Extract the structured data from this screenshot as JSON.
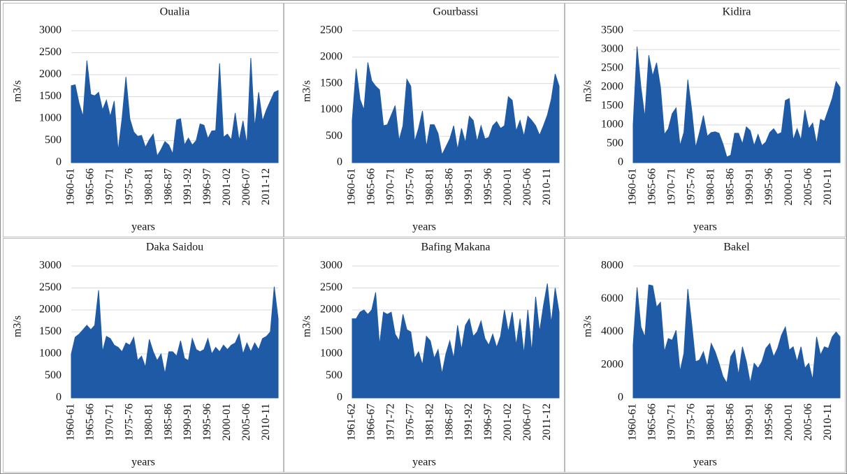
{
  "chart_data": [
    {
      "type": "area",
      "title": "Oualia",
      "y_label": "m3/s",
      "x_label": "years",
      "color": "#1f5aa6",
      "categories": [
        "1960-61",
        null,
        null,
        null,
        null,
        "1965-66",
        null,
        null,
        null,
        null,
        "1970-71",
        null,
        null,
        null,
        null,
        "1975-76",
        null,
        null,
        null,
        null,
        "1980-81",
        null,
        null,
        null,
        null,
        "1986-87",
        null,
        null,
        null,
        null,
        "1991-92",
        null,
        null,
        null,
        null,
        "1996-97",
        null,
        null,
        null,
        null,
        "2001-02",
        null,
        null,
        null,
        null,
        "2006-07",
        null,
        null,
        null,
        null,
        "2011-12",
        null,
        null,
        null
      ],
      "values": [
        1750,
        1770,
        1350,
        1050,
        2320,
        1550,
        1520,
        1600,
        1200,
        1420,
        1050,
        1400,
        270,
        1000,
        1950,
        1000,
        700,
        600,
        620,
        350,
        520,
        650,
        150,
        300,
        480,
        400,
        200,
        970,
        1000,
        400,
        560,
        400,
        500,
        880,
        850,
        550,
        720,
        730,
        2260,
        580,
        650,
        520,
        1130,
        500,
        950,
        420,
        2380,
        800,
        1600,
        950,
        1200,
        1400,
        1600,
        1640
      ],
      "ylim": [
        0,
        3000
      ],
      "yticks": [
        0,
        500,
        1000,
        1500,
        2000,
        2500,
        3000
      ]
    },
    {
      "type": "area",
      "title": "Gourbassi",
      "y_label": "m3/s",
      "x_label": "years",
      "color": "#1f5aa6",
      "categories": [
        "1960-61",
        null,
        null,
        null,
        null,
        "1965-66",
        null,
        null,
        null,
        null,
        "1970-71",
        null,
        null,
        null,
        null,
        "1975-76",
        null,
        null,
        null,
        null,
        "1980-81",
        null,
        null,
        null,
        null,
        "1985-86",
        null,
        null,
        null,
        null,
        "1990-91",
        null,
        null,
        null,
        null,
        "1995-96",
        null,
        null,
        null,
        null,
        "2000-01",
        null,
        null,
        null,
        null,
        "2005-06",
        null,
        null,
        null,
        null,
        "2010-11",
        null,
        null,
        null
      ],
      "values": [
        800,
        1780,
        1200,
        1000,
        1900,
        1550,
        1450,
        1380,
        700,
        720,
        900,
        1080,
        420,
        700,
        1580,
        1450,
        400,
        650,
        980,
        300,
        720,
        720,
        550,
        150,
        300,
        450,
        700,
        250,
        650,
        380,
        880,
        800,
        400,
        700,
        450,
        480,
        700,
        780,
        650,
        700,
        1250,
        1180,
        600,
        800,
        500,
        880,
        800,
        700,
        520,
        700,
        900,
        1200,
        1680,
        1450
      ],
      "ylim": [
        0,
        2500
      ],
      "yticks": [
        0,
        500,
        1000,
        1500,
        2000,
        2500
      ]
    },
    {
      "type": "area",
      "title": "Kidira",
      "y_label": "m3/s",
      "x_label": "years",
      "color": "#1f5aa6",
      "categories": [
        "1960-61",
        null,
        null,
        null,
        null,
        "1965-66",
        null,
        null,
        null,
        null,
        "1970-71",
        null,
        null,
        null,
        null,
        "1975-76",
        null,
        null,
        null,
        null,
        "1980-81",
        null,
        null,
        null,
        null,
        "1985-86",
        null,
        null,
        null,
        null,
        "1990-91",
        null,
        null,
        null,
        null,
        "1995-96",
        null,
        null,
        null,
        null,
        "2000-01",
        null,
        null,
        null,
        null,
        "2005-06",
        null,
        null,
        null,
        null,
        "2010-11",
        null,
        null,
        null
      ],
      "values": [
        1000,
        3080,
        2000,
        1200,
        2850,
        2300,
        2650,
        2000,
        750,
        900,
        1300,
        1450,
        450,
        800,
        2200,
        1400,
        400,
        800,
        1250,
        700,
        800,
        820,
        780,
        500,
        150,
        200,
        780,
        780,
        500,
        950,
        850,
        450,
        750,
        450,
        550,
        800,
        900,
        750,
        800,
        1650,
        1700,
        600,
        900,
        600,
        1400,
        900,
        1050,
        500,
        1150,
        1100,
        1400,
        1700,
        2150,
        2000
      ],
      "ylim": [
        0,
        3500
      ],
      "yticks": [
        0,
        500,
        1000,
        1500,
        2000,
        2500,
        3000,
        3500
      ]
    },
    {
      "type": "area",
      "title": "Daka Saidou",
      "y_label": "m3/s",
      "x_label": "years",
      "color": "#1f5aa6",
      "categories": [
        "1960-61",
        null,
        null,
        null,
        null,
        "1965-66",
        null,
        null,
        null,
        null,
        "1970-71",
        null,
        null,
        null,
        null,
        "1975-76",
        null,
        null,
        null,
        null,
        "1980-81",
        null,
        null,
        null,
        null,
        "1985-86",
        null,
        null,
        null,
        null,
        "1990-91",
        null,
        null,
        null,
        null,
        "1995-96",
        null,
        null,
        null,
        null,
        "2000-01",
        null,
        null,
        null,
        null,
        "2005-06",
        null,
        null,
        null,
        null,
        "2010-11",
        null,
        null,
        null
      ],
      "values": [
        1000,
        1380,
        1450,
        1550,
        1650,
        1550,
        1650,
        2450,
        1050,
        1400,
        1350,
        1200,
        1150,
        1050,
        1250,
        1200,
        1380,
        850,
        950,
        700,
        1330,
        1050,
        850,
        1000,
        550,
        1050,
        1050,
        950,
        1300,
        900,
        850,
        1350,
        1100,
        1050,
        1100,
        1350,
        1000,
        1150,
        1050,
        1200,
        1100,
        1200,
        1250,
        1450,
        1000,
        1250,
        1050,
        1250,
        1100,
        1350,
        1400,
        1500,
        2530,
        1800
      ],
      "ylim": [
        0,
        3000
      ],
      "yticks": [
        0,
        500,
        1000,
        1500,
        2000,
        2500,
        3000
      ]
    },
    {
      "type": "area",
      "title": "Bafing Makana",
      "y_label": "m3/s",
      "x_label": "years",
      "color": "#1f5aa6",
      "categories": [
        "1961-62",
        null,
        null,
        null,
        null,
        "1966-67",
        null,
        null,
        null,
        null,
        "1971-72",
        null,
        null,
        null,
        null,
        "1976-77",
        null,
        null,
        null,
        null,
        "1981-82",
        null,
        null,
        null,
        null,
        "1986-87",
        null,
        null,
        null,
        null,
        "1991-92",
        null,
        null,
        null,
        null,
        "1996-97",
        null,
        null,
        null,
        null,
        "2001-02",
        null,
        null,
        null,
        null,
        "2006-07",
        null,
        null,
        null,
        null,
        "2011-12",
        null,
        null,
        null
      ],
      "values": [
        1800,
        1800,
        1950,
        2000,
        1900,
        2000,
        2400,
        1200,
        1950,
        1900,
        1950,
        1450,
        1300,
        1900,
        1550,
        1500,
        900,
        1050,
        750,
        1400,
        1300,
        900,
        1100,
        550,
        1000,
        1300,
        900,
        1650,
        1100,
        1650,
        1800,
        1400,
        1500,
        1750,
        1350,
        1200,
        1450,
        1150,
        1400,
        2000,
        1500,
        1950,
        1200,
        1800,
        1000,
        2000,
        1050,
        2300,
        1500,
        2100,
        2600,
        1700,
        2500,
        1950
      ],
      "ylim": [
        0,
        3000
      ],
      "yticks": [
        0,
        500,
        1000,
        1500,
        2000,
        2500,
        3000
      ]
    },
    {
      "type": "area",
      "title": "Bakel",
      "y_label": "m3/s",
      "x_label": "years",
      "color": "#1f5aa6",
      "categories": [
        "1960-61",
        null,
        null,
        null,
        null,
        "1965-66",
        null,
        null,
        null,
        null,
        "1970-71",
        null,
        null,
        null,
        null,
        "1975-76",
        null,
        null,
        null,
        null,
        "1980-81",
        null,
        null,
        null,
        null,
        "1985-86",
        null,
        null,
        null,
        null,
        "1990-91",
        null,
        null,
        null,
        null,
        "1995-96",
        null,
        null,
        null,
        null,
        "2000-01",
        null,
        null,
        null,
        null,
        "2005-06",
        null,
        null,
        null,
        null,
        "2010-11",
        null,
        null,
        null
      ],
      "values": [
        3200,
        6700,
        4300,
        3700,
        6850,
        6800,
        5500,
        5800,
        2800,
        3600,
        3500,
        4100,
        1600,
        2700,
        6600,
        4500,
        2200,
        2300,
        2800,
        1900,
        3300,
        2800,
        2100,
        1300,
        900,
        2500,
        2900,
        1400,
        3100,
        2200,
        900,
        2100,
        1800,
        2200,
        3000,
        3300,
        2500,
        3000,
        3800,
        4300,
        2900,
        3100,
        2200,
        3100,
        1800,
        2100,
        1100,
        3700,
        2600,
        3100,
        3000,
        3700,
        4000,
        3700
      ],
      "ylim": [
        0,
        8000
      ],
      "yticks": [
        0,
        2000,
        4000,
        6000,
        8000
      ]
    }
  ]
}
